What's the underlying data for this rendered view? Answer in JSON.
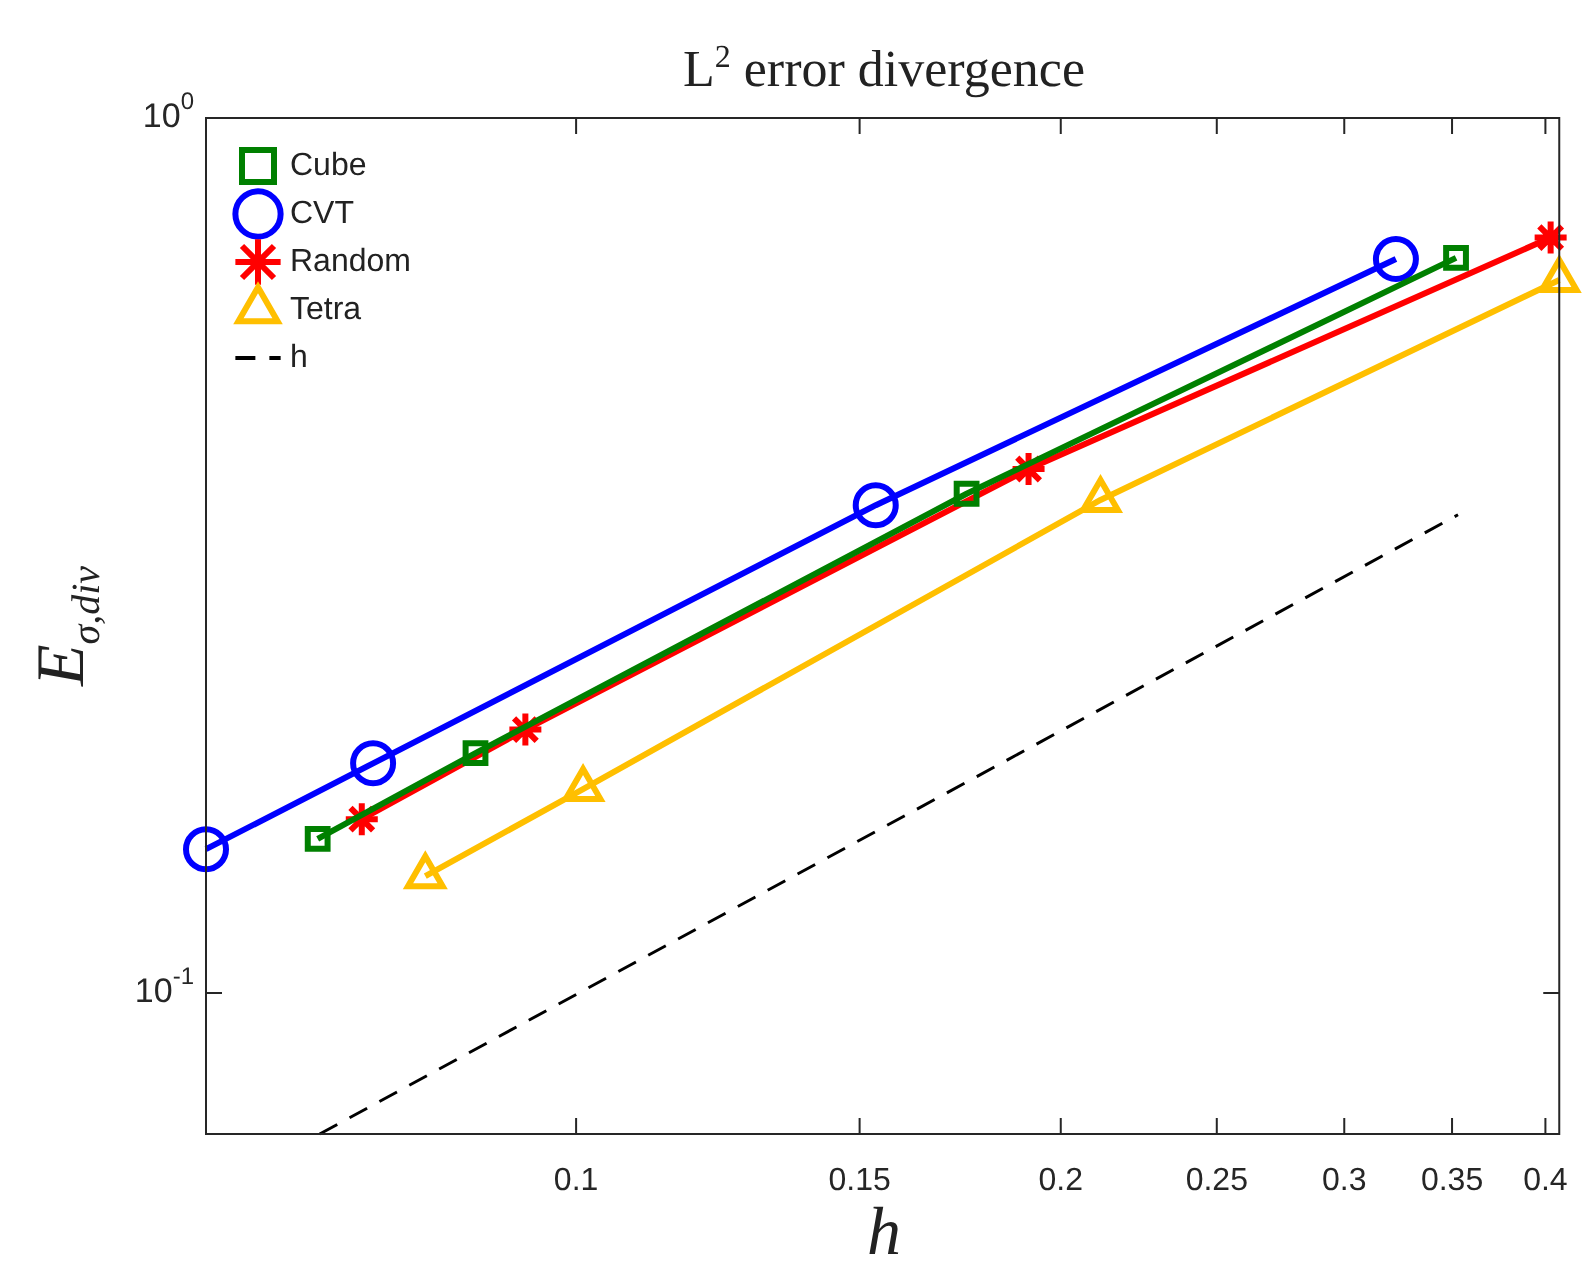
{
  "chart_data": {
    "type": "line",
    "title": "L$^{2}$ error divergence",
    "xlabel": "h",
    "ylabel": "E$_{σ,div}$",
    "log": "xy",
    "grid": false,
    "legend": "top left",
    "xlim": [
      0.0589,
      0.408
    ],
    "xticks": [
      0.1,
      0.15,
      0.2,
      0.25,
      0.3,
      0.35,
      0.4
    ],
    "ylim": [
      0.069,
      1
    ],
    "yticks": [
      {
        "value": 0.1,
        "label": "10$^{-1}$"
      },
      {
        "value": 1,
        "label": "10$^{0}$"
      }
    ],
    "series": [
      {
        "name": "Cube",
        "color": "#008000",
        "marker": "square",
        "x": [
          0.0691,
          0.0866,
          0.1748,
          0.352
        ],
        "values": [
          0.15,
          0.188,
          0.372,
          0.692
        ]
      },
      {
        "name": "CVT",
        "color": "#0000ff",
        "marker": "circle",
        "x": [
          0.0589,
          0.0748,
          0.1535,
          0.323
        ],
        "values": [
          0.146,
          0.183,
          0.361,
          0.69
        ]
      },
      {
        "name": "Random",
        "color": "#ff0000",
        "marker": "cross",
        "x": [
          0.0736,
          0.093,
          0.191,
          0.403
        ],
        "values": [
          0.158,
          0.2,
          0.397,
          0.73
        ]
      },
      {
        "name": "Tetra",
        "color": "#ffbf00",
        "marker": "triangle",
        "x": [
          0.0806,
          0.101,
          0.2117,
          0.408
        ],
        "values": [
          0.136,
          0.171,
          0.366,
          0.653
        ]
      },
      {
        "name": "h",
        "color": "#000000",
        "marker": "none",
        "line_style": "dashed",
        "x": [
          0.0693,
          0.353
        ],
        "values": [
          0.069,
          0.352
        ]
      }
    ]
  }
}
